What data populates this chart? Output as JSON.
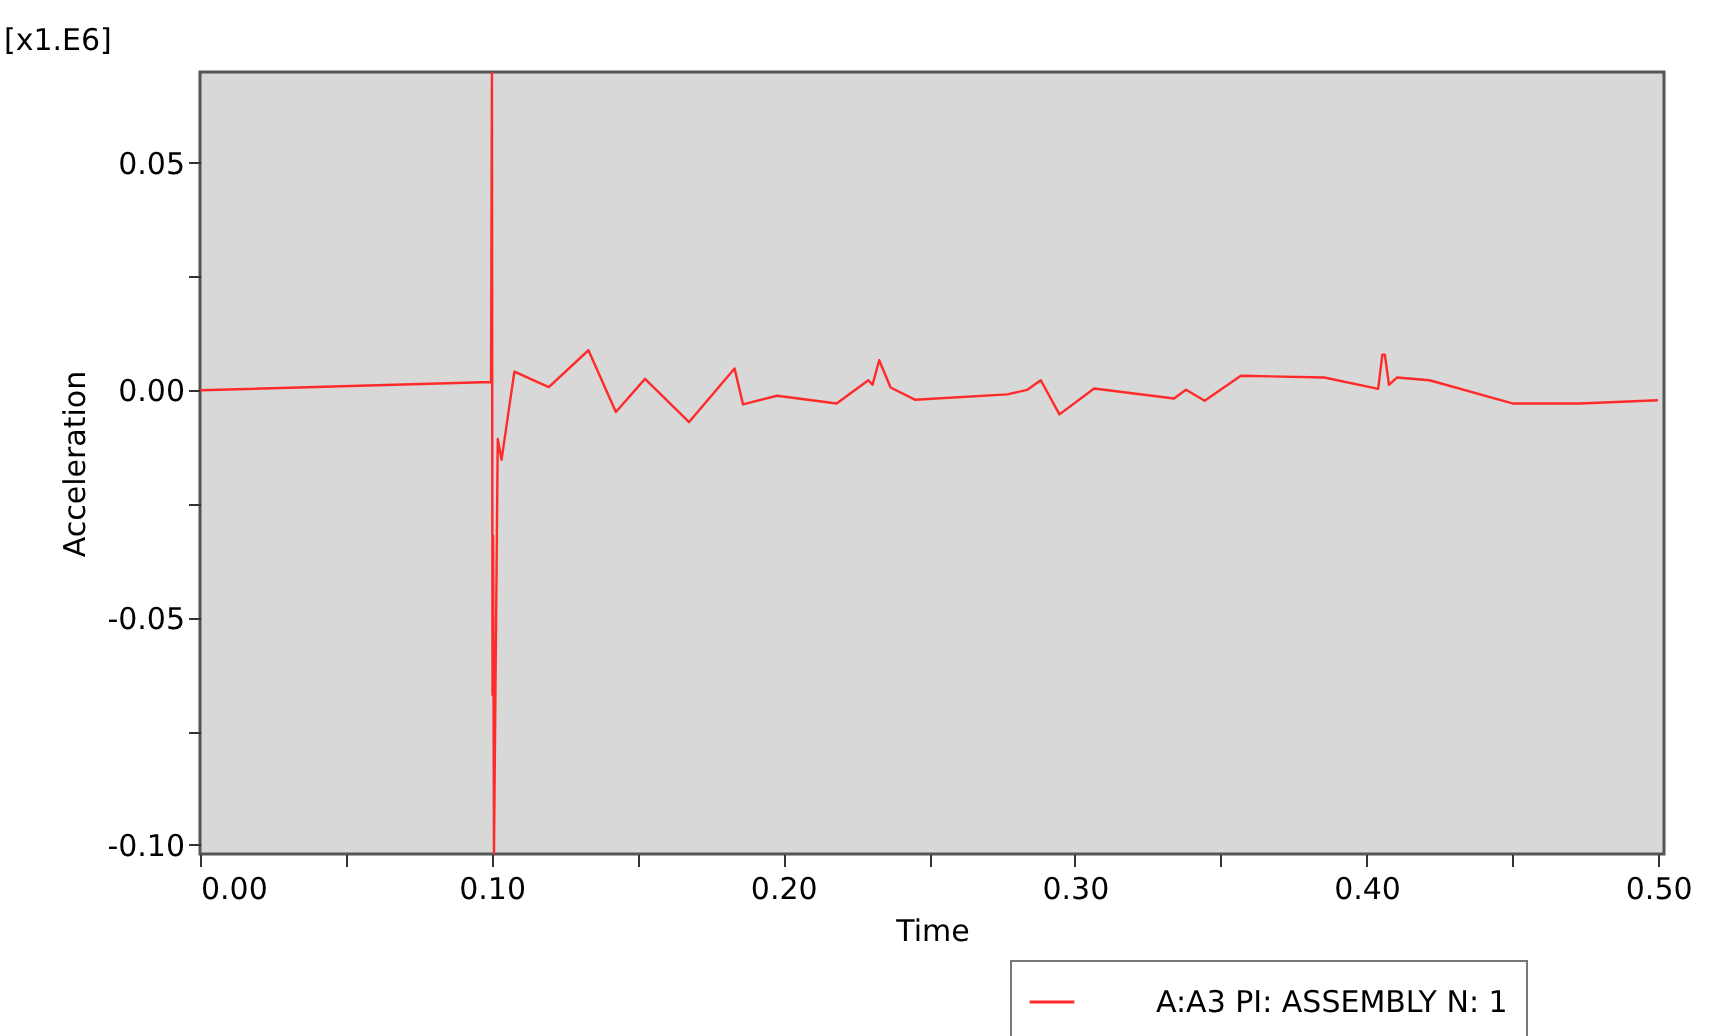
{
  "chart_data": {
    "type": "line",
    "xlabel": "Time",
    "ylabel": "Acceleration",
    "annotations": [
      "[x1.E6]"
    ],
    "xlim": [
      0,
      0.502
    ],
    "ylim": [
      -0.102,
      0.07
    ],
    "xticks": [
      {
        "value": 0,
        "label": "0.00"
      },
      {
        "value": 0.05,
        "label": null
      },
      {
        "value": 0.1,
        "label": "0.10"
      },
      {
        "value": 0.15,
        "label": null
      },
      {
        "value": 0.2,
        "label": "0.20"
      },
      {
        "value": 0.25,
        "label": null
      },
      {
        "value": 0.3,
        "label": "0.30"
      },
      {
        "value": 0.35,
        "label": null
      },
      {
        "value": 0.4,
        "label": "0.40"
      },
      {
        "value": 0.45,
        "label": null
      },
      {
        "value": 0.5,
        "label": "0.50"
      }
    ],
    "yticks": [
      {
        "value": -0.1,
        "label": "-0.10"
      },
      {
        "value": -0.075,
        "label": null
      },
      {
        "value": -0.05,
        "label": "-0.05"
      },
      {
        "value": -0.025,
        "label": null
      },
      {
        "value": 0,
        "label": "0.00"
      },
      {
        "value": 0.025,
        "label": null
      },
      {
        "value": 0.05,
        "label": "0.05"
      }
    ],
    "grid": false,
    "legend": "bottom right",
    "series": [
      {
        "name": "A:A3 PI: ASSEMBLY N: 1",
        "color": "#ff2a2a",
        "x": [
          0,
          0.0998,
          0.1001,
          0.1003,
          0.1005,
          0.1008,
          0.1021,
          0.1034,
          0.1078,
          0.1196,
          0.1332,
          0.1426,
          0.1526,
          0.1677,
          0.1833,
          0.1862,
          0.1979,
          0.2183,
          0.2292,
          0.2306,
          0.2329,
          0.2368,
          0.2453,
          0.2768,
          0.2837,
          0.2883,
          0.2947,
          0.3066,
          0.334,
          0.3381,
          0.3445,
          0.3569,
          0.3855,
          0.404,
          0.4054,
          0.4063,
          0.4077,
          0.4104,
          0.4216,
          0.45,
          0.4731,
          0.4999
        ],
        "values": [
          0,
          0.0018,
          0.07,
          -0.067,
          -0.032,
          -0.102,
          -0.0107,
          -0.0153,
          0.0041,
          0.0007,
          0.0088,
          -0.0048,
          0.0025,
          -0.007,
          0.0048,
          -0.0031,
          -0.0012,
          -0.0029,
          0.0022,
          0.0012,
          0.0066,
          0.0006,
          -0.0021,
          -0.0009,
          0.0001,
          0.0022,
          -0.0053,
          0.0004,
          -0.0018,
          0.0001,
          -0.0023,
          0.0032,
          0.0028,
          0.0003,
          0.0078,
          0.0078,
          0.0012,
          0.0028,
          0.0022,
          -0.0029,
          -0.0029,
          -0.0022
        ]
      }
    ]
  }
}
